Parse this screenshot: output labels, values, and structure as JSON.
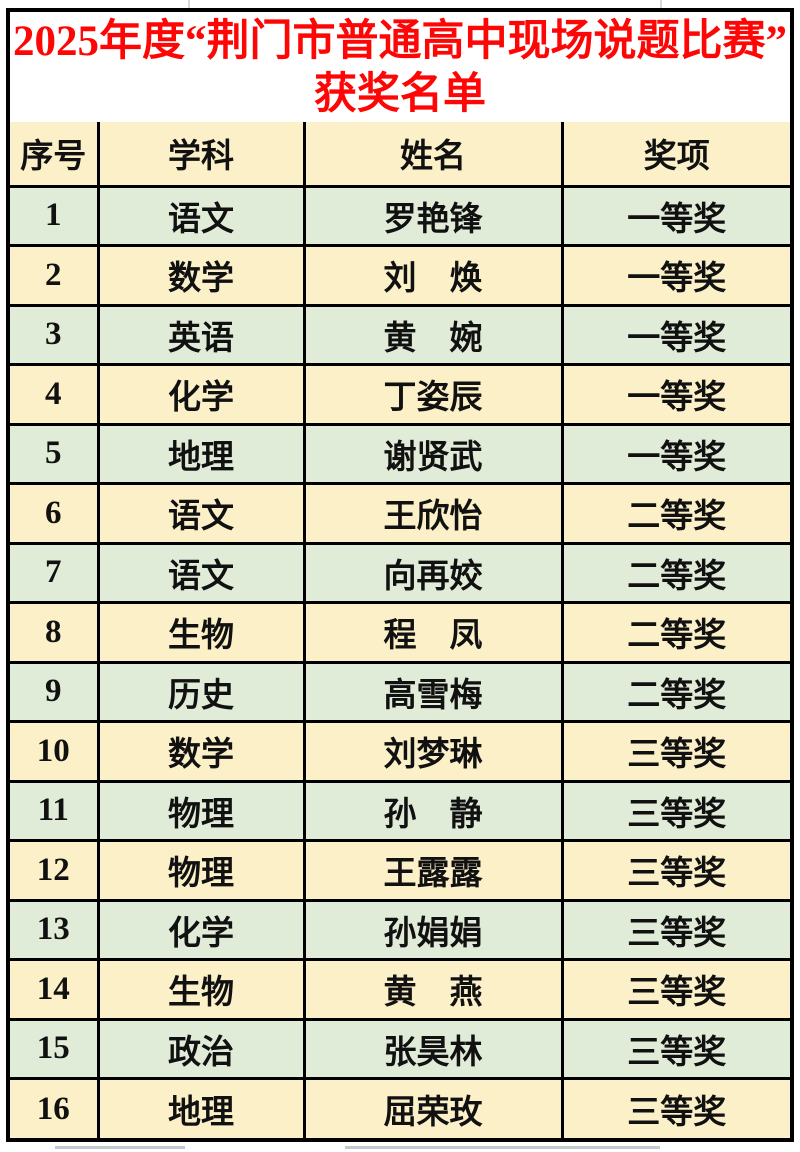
{
  "title": {
    "line1": "2025年度“荆门市普通高中现场说题比赛”",
    "line2": "获奖名单"
  },
  "table": {
    "headers": [
      "序号",
      "学科",
      "姓名",
      "奖项"
    ],
    "rows": [
      {
        "no": "1",
        "subject": "语文",
        "name": "罗艳锋",
        "award": "一等奖"
      },
      {
        "no": "2",
        "subject": "数学",
        "name": "刘　焕",
        "award": "一等奖"
      },
      {
        "no": "3",
        "subject": "英语",
        "name": "黄　婉",
        "award": "一等奖"
      },
      {
        "no": "4",
        "subject": "化学",
        "name": "丁姿辰",
        "award": "一等奖"
      },
      {
        "no": "5",
        "subject": "地理",
        "name": "谢贤武",
        "award": "一等奖"
      },
      {
        "no": "6",
        "subject": "语文",
        "name": "王欣怡",
        "award": "二等奖"
      },
      {
        "no": "7",
        "subject": "语文",
        "name": "向再姣",
        "award": "二等奖"
      },
      {
        "no": "8",
        "subject": "生物",
        "name": "程　凤",
        "award": "二等奖"
      },
      {
        "no": "9",
        "subject": "历史",
        "name": "高雪梅",
        "award": "二等奖"
      },
      {
        "no": "10",
        "subject": "数学",
        "name": "刘梦琳",
        "award": "三等奖"
      },
      {
        "no": "11",
        "subject": "物理",
        "name": "孙　静",
        "award": "三等奖"
      },
      {
        "no": "12",
        "subject": "物理",
        "name": "王露露",
        "award": "三等奖"
      },
      {
        "no": "13",
        "subject": "化学",
        "name": "孙娟娟",
        "award": "三等奖"
      },
      {
        "no": "14",
        "subject": "生物",
        "name": "黄　燕",
        "award": "三等奖"
      },
      {
        "no": "15",
        "subject": "政治",
        "name": "张昊林",
        "award": "三等奖"
      },
      {
        "no": "16",
        "subject": "地理",
        "name": "屈荣玫",
        "award": "三等奖"
      }
    ]
  },
  "colors": {
    "row_green": "#e1ecd8",
    "row_yellow": "#fbf0c7",
    "title_red": "#fe0606",
    "border_black": "#000000"
  }
}
